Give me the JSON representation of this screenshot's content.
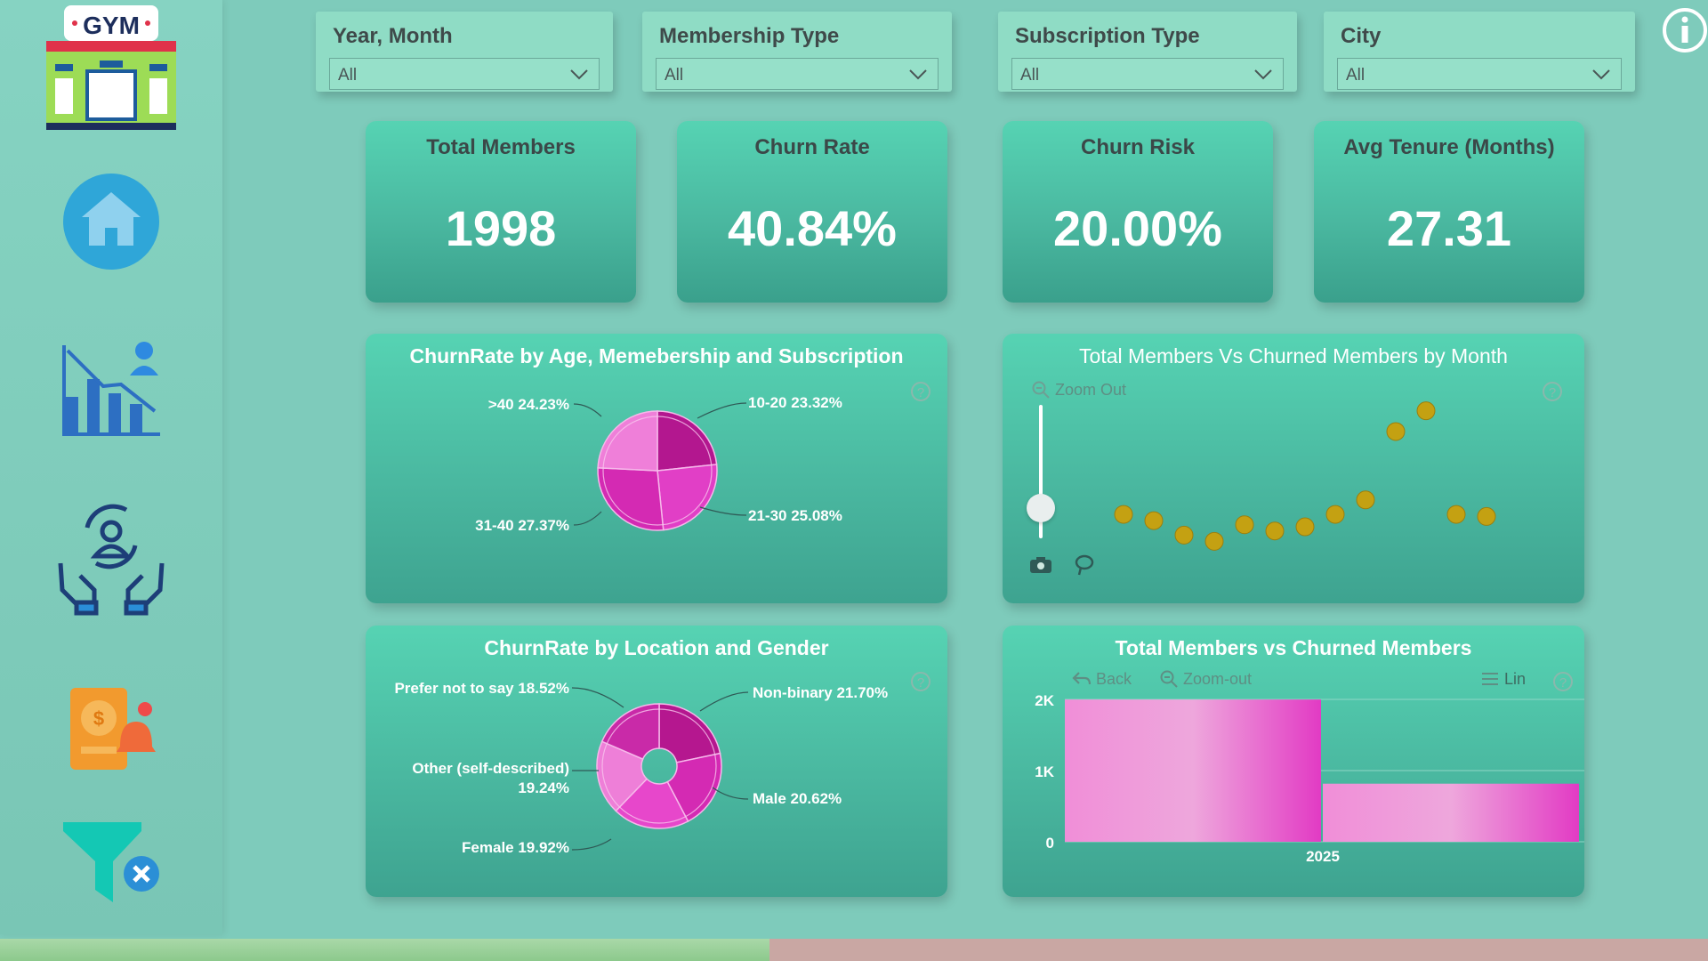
{
  "sidebar": {
    "logo_text": "GYM",
    "icons": [
      "gym-logo-icon",
      "home-icon",
      "churn-analytics-icon",
      "member-retention-icon",
      "finance-alert-icon",
      "clear-filters-icon"
    ]
  },
  "filters": [
    {
      "title": "Year, Month",
      "value": "All"
    },
    {
      "title": "Membership Type",
      "value": "All"
    },
    {
      "title": "Subscription Type",
      "value": "All"
    },
    {
      "title": "City",
      "value": "All"
    }
  ],
  "kpis": [
    {
      "label": "Total Members",
      "value": "1998"
    },
    {
      "label": "Churn Rate",
      "value": "40.84%"
    },
    {
      "label": "Churn Risk",
      "value": "20.00%"
    },
    {
      "label": "Avg Tenure (Months)",
      "value": "27.31"
    }
  ],
  "colors": {
    "accent": "#56d3b3",
    "pink": "#e23bc4",
    "dot": "#c4a112",
    "bar": "#ee7dd2"
  },
  "chart_data": [
    {
      "type": "pie",
      "title": "ChurnRate by Age, Memebership and Subscription",
      "categories": [
        "10-20",
        "21-30",
        "31-40",
        ">40"
      ],
      "values": [
        23.32,
        25.08,
        27.37,
        24.23
      ],
      "labels": [
        ">40 24.23%",
        "10-20 23.32%",
        "31-40 27.37%",
        "21-30 25.08%"
      ]
    },
    {
      "type": "scatter",
      "title": "Total Members Vs Churned Members by Month",
      "tools": {
        "zoom_out": "Zoom Out"
      },
      "x": [
        1,
        2,
        3,
        4,
        5,
        6,
        7,
        8,
        9,
        10,
        11,
        12,
        13
      ],
      "y": [
        48,
        45,
        38,
        35,
        43,
        40,
        42,
        48,
        55,
        88,
        98,
        48,
        47
      ]
    },
    {
      "type": "pie",
      "title": "ChurnRate by Location and Gender",
      "categories": [
        "Non-binary",
        "Male",
        "Female",
        "Other (self-described)",
        "Prefer not to say"
      ],
      "values": [
        21.7,
        20.62,
        19.92,
        19.24,
        18.52
      ],
      "labels": [
        "Prefer not to say 18.52%",
        "Non-binary 21.70%",
        "Other (self-described)",
        "19.24%",
        "Male 20.62%",
        "Female 19.92%"
      ]
    },
    {
      "type": "bar",
      "title": "Total Members vs Churned Members",
      "tools": {
        "back": "Back",
        "zoom_out": "Zoom-out",
        "lin": "Lin"
      },
      "categories": [
        "2025"
      ],
      "series": [
        {
          "name": "Total Members",
          "values": [
            1998
          ]
        },
        {
          "name": "Churned Members",
          "values": [
            816
          ]
        }
      ],
      "yticks": [
        "2K",
        "1K",
        "0"
      ],
      "ylim": [
        0,
        2000
      ]
    }
  ]
}
